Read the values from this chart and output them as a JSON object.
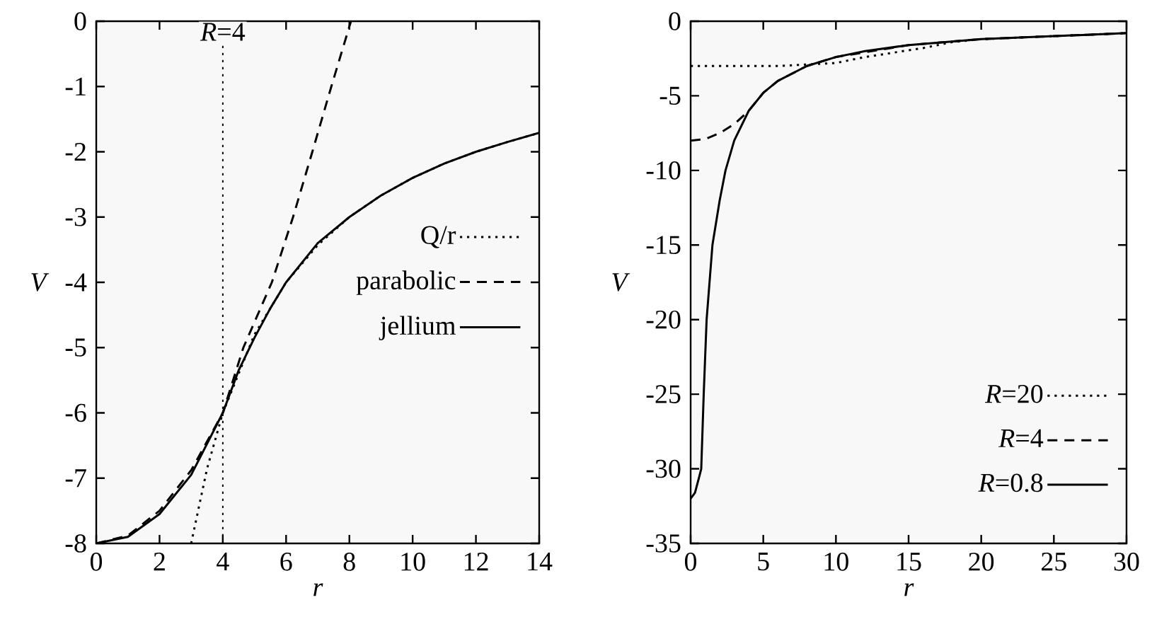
{
  "chart_data": [
    {
      "type": "line",
      "xlabel": "r",
      "ylabel": "V",
      "xlim": [
        0,
        14
      ],
      "ylim": [
        -8,
        0
      ],
      "xticks": [
        0,
        2,
        4,
        6,
        8,
        10,
        12,
        14
      ],
      "yticks": [
        0,
        -1,
        -2,
        -3,
        -4,
        -5,
        -6,
        -7,
        -8
      ],
      "legend": "right",
      "grid": false,
      "ref_lines": [
        {
          "axis": "x",
          "value": 4,
          "label": "*R*=4",
          "line_style": "dotted",
          "color": "#000000"
        }
      ],
      "series": [
        {
          "name": "Q/r",
          "color": "#000000",
          "line_style": "dotted",
          "x": [
            3,
            3.5,
            4,
            5,
            6,
            7,
            8,
            9,
            10,
            11,
            12,
            13,
            14
          ],
          "values": [
            -8,
            -6.86,
            -6,
            -4.8,
            -4,
            -3.43,
            -3,
            -2.67,
            -2.4,
            -2.18,
            -2,
            -1.85,
            -1.71
          ]
        },
        {
          "name": "parabolic",
          "color": "#000000",
          "line_style": "dashed",
          "x": [
            0,
            1,
            2,
            3,
            4,
            4.65,
            5.55,
            6.22,
            6.83,
            7.43,
            8.05
          ],
          "values": [
            -8,
            -7.88,
            -7.5,
            -6.88,
            -6,
            -5,
            -4,
            -3,
            -2,
            -1,
            0
          ]
        },
        {
          "name": "jellium",
          "color": "#000000",
          "line_style": "solid",
          "x": [
            0,
            1,
            2,
            3,
            4,
            4.5,
            5,
            5.5,
            6,
            7,
            8,
            9,
            10,
            11,
            12,
            13,
            14
          ],
          "values": [
            -8,
            -7.9,
            -7.55,
            -6.95,
            -6,
            -5.35,
            -4.85,
            -4.4,
            -4,
            -3.4,
            -3,
            -2.67,
            -2.4,
            -2.18,
            -2,
            -1.85,
            -1.71
          ]
        }
      ]
    },
    {
      "type": "line",
      "xlabel": "r",
      "ylabel": "V",
      "xlim": [
        0,
        30
      ],
      "ylim": [
        -35,
        0
      ],
      "xticks": [
        0,
        5,
        10,
        15,
        20,
        25,
        30
      ],
      "yticks": [
        0,
        -5,
        -10,
        -15,
        -20,
        -25,
        -30,
        -35
      ],
      "legend": "bottom right",
      "grid": false,
      "series": [
        {
          "name": "*R*=20",
          "color": "#000000",
          "line_style": "dotted",
          "x": [
            0,
            2,
            4,
            6,
            8,
            10,
            12,
            14,
            16,
            18,
            20,
            25,
            30
          ],
          "values": [
            -3,
            -3,
            -3,
            -3,
            -2.9,
            -2.8,
            -2.4,
            -2.1,
            -1.8,
            -1.4,
            -1.2,
            -1,
            -0.8
          ]
        },
        {
          "name": "*R*=4",
          "color": "#000000",
          "line_style": "dashed",
          "x": [
            0,
            1,
            2,
            3,
            4,
            5,
            6,
            8,
            10,
            15,
            20,
            25,
            30
          ],
          "values": [
            -8,
            -7.9,
            -7.5,
            -6.9,
            -6,
            -4.8,
            -4,
            -3,
            -2.4,
            -1.6,
            -1.2,
            -1,
            -0.8
          ]
        },
        {
          "name": "*R*=0.8",
          "color": "#000000",
          "line_style": "solid",
          "x": [
            0,
            0.3,
            0.6,
            0.73,
            0.9,
            1.1,
            1.5,
            2,
            2.4,
            3,
            4,
            5,
            6,
            8,
            10,
            12,
            15,
            20,
            25,
            30
          ],
          "values": [
            -32,
            -31.6,
            -30.5,
            -30,
            -25,
            -20,
            -15,
            -12,
            -10,
            -8,
            -6,
            -4.8,
            -4,
            -3,
            -2.4,
            -2,
            -1.6,
            -1.2,
            -1,
            -0.8
          ]
        }
      ]
    }
  ]
}
